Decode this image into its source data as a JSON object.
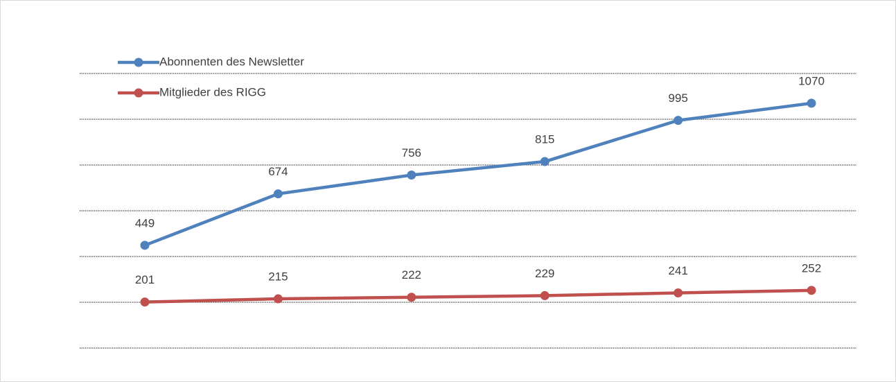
{
  "chart_data": {
    "type": "line",
    "categories": [
      null,
      null,
      null,
      null,
      null,
      null
    ],
    "series": [
      {
        "name": "Abonnenten des Newsletter",
        "color": "#4f81bd",
        "values": [
          449,
          674,
          756,
          815,
          995,
          1070
        ]
      },
      {
        "name": "Mitglieder des RIGG",
        "color": "#c0504d",
        "values": [
          201,
          215,
          222,
          229,
          241,
          252
        ]
      }
    ],
    "ylim": [
      0,
      1200
    ],
    "yticks": [
      0,
      200,
      400,
      600,
      800,
      1000,
      1200
    ],
    "grid": true,
    "legend": "top-left"
  }
}
